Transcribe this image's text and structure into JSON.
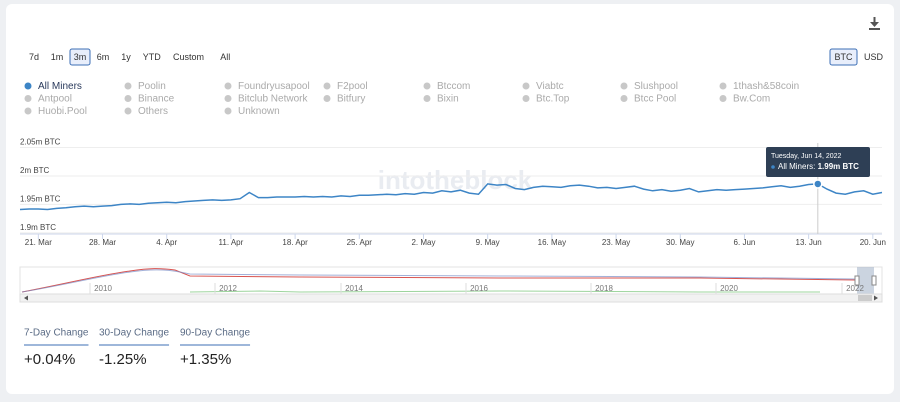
{
  "chart_data": {
    "type": "line",
    "range_buttons": [
      "7d",
      "1m",
      "3m",
      "6m",
      "1y",
      "YTD",
      "Custom",
      "All"
    ],
    "active_range": 2,
    "currency_buttons": [
      "BTC",
      "USD"
    ],
    "active_currency": 0,
    "watermark": "intotheblock",
    "series": [
      {
        "name": "All Miners",
        "color": "#3d85c6",
        "values": [
          1941000,
          1942000,
          1942000,
          1941000,
          1943000,
          1944000,
          1946000,
          1947000,
          1946000,
          1947000,
          1948000,
          1950000,
          1951000,
          1950000,
          1952000,
          1953000,
          1954000,
          1953000,
          1955000,
          1956000,
          1957000,
          1958000,
          1957000,
          1958000,
          1960000,
          1971000,
          1962000,
          1962000,
          1963000,
          1963000,
          1963000,
          1964000,
          1963000,
          1964000,
          1963000,
          1965000,
          1964000,
          1966000,
          1966000,
          1967000,
          1968000,
          1967000,
          1969000,
          1968000,
          1971000,
          1970000,
          1974000,
          1972000,
          1975000,
          1970000,
          1968000,
          1986000,
          1984000,
          1985000,
          1978000,
          1976000,
          1980000,
          1982000,
          1981000,
          1980000,
          1983000,
          1984000,
          1982000,
          1979000,
          1980000,
          1978000,
          1980000,
          1982000,
          1977000,
          1974000,
          1976000,
          1973000,
          1975000,
          1978000,
          1972000,
          1974000,
          1976000,
          1975000,
          1976000,
          1977000,
          1978000,
          1979000,
          1981000,
          1983000,
          1980000,
          1982000,
          1985000,
          1986000,
          1977000,
          1970000,
          1968000,
          1972000,
          1974000,
          1968000,
          1971000
        ]
      }
    ],
    "inactive_series": [
      "Poolin",
      "Foundryusapool",
      "F2pool",
      "Btccom",
      "Viabtc",
      "Slushpool",
      "1thash&58coin",
      "Antpool",
      "Binance",
      "Bitclub Network",
      "Bitfury",
      "Bixin",
      "Btc.Top",
      "Btcc Pool",
      "Bw.Com",
      "Huobi.Pool",
      "Others",
      "Unknown"
    ],
    "inactive_color": "#c8c8c8",
    "categories": [
      null,
      null,
      "21. Mar",
      null,
      null,
      null,
      null,
      null,
      null,
      "28. Mar",
      null,
      null,
      null,
      null,
      null,
      null,
      "4. Apr",
      null,
      null,
      null,
      null,
      null,
      null,
      "11. Apr",
      null,
      null,
      null,
      null,
      null,
      null,
      "18. Apr",
      null,
      null,
      null,
      null,
      null,
      null,
      "25. Apr",
      null,
      null,
      null,
      null,
      null,
      null,
      "2. May",
      null,
      null,
      null,
      null,
      null,
      null,
      "9. May",
      null,
      null,
      null,
      null,
      null,
      null,
      "16. May",
      null,
      null,
      null,
      null,
      null,
      null,
      "23. May",
      null,
      null,
      null,
      null,
      null,
      null,
      "30. May",
      null,
      null,
      null,
      null,
      null,
      null,
      "6. Jun",
      null,
      null,
      null,
      null,
      null,
      null,
      "13. Jun",
      null,
      null,
      null,
      null,
      null,
      null,
      "20. Jun",
      null
    ],
    "ylim": [
      1898000,
      2058000
    ],
    "yticks": [
      {
        "value": 1900000,
        "label": "1.9m BTC"
      },
      {
        "value": 1950000,
        "label": "1.95m BTC"
      },
      {
        "value": 2000000,
        "label": "2m BTC"
      },
      {
        "value": 2050000,
        "label": "2.05m BTC"
      }
    ],
    "grid": true,
    "tooltip": {
      "index": 87,
      "date": "Tuesday, Jun 14, 2022",
      "value_label": "1.99m BTC"
    },
    "navigator_years": [
      "2010",
      "2012",
      "2014",
      "2016",
      "2018",
      "2020",
      "2022"
    ],
    "changes": [
      {
        "label": "7-Day Change",
        "value": "+0.04%"
      },
      {
        "label": "30-Day Change",
        "value": "-1.25%"
      },
      {
        "label": "90-Day Change",
        "value": "+1.35%"
      }
    ]
  }
}
